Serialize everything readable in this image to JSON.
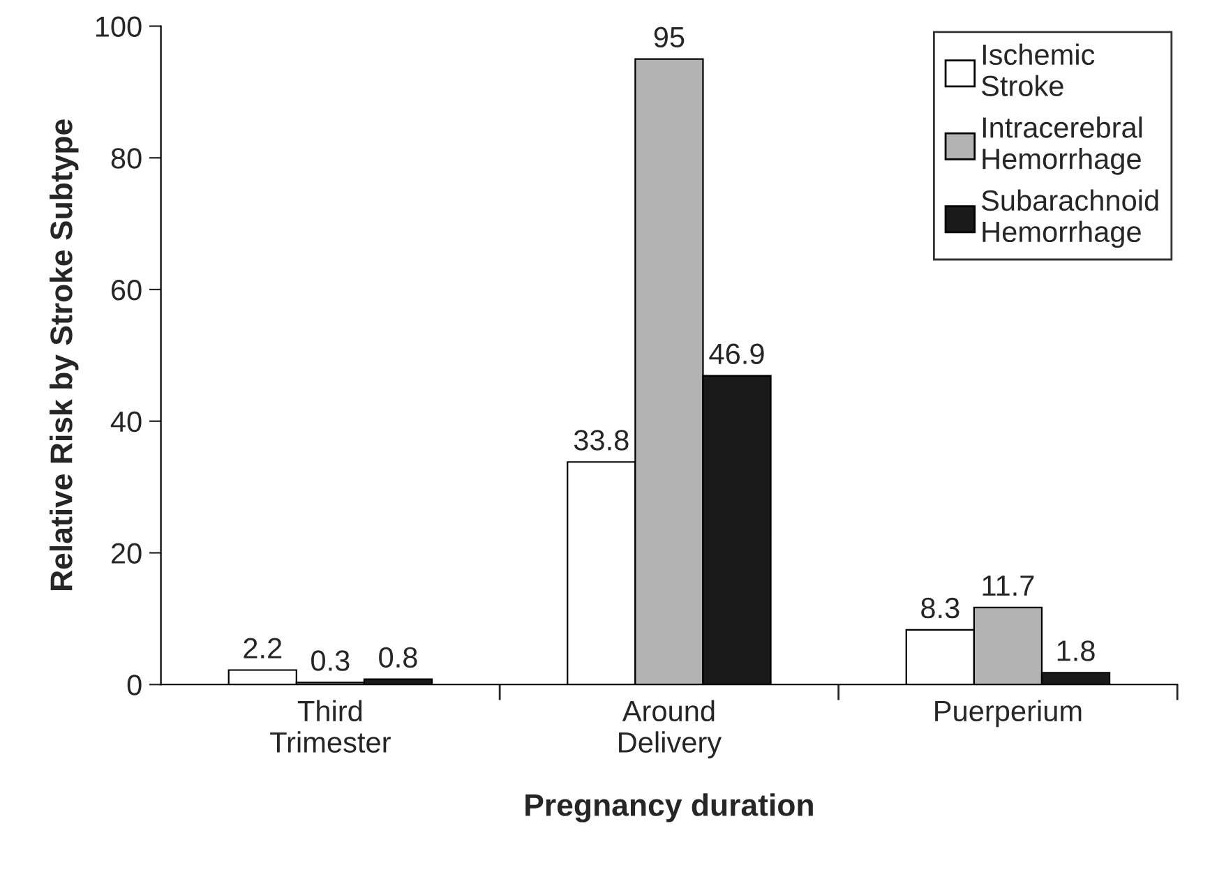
{
  "chart_data": {
    "type": "bar",
    "xlabel": "Pregnancy duration",
    "ylabel": "Relative Risk by Stroke Subtype",
    "categories": [
      "Third\nTrimester",
      "Around\nDelivery",
      "Puerperium"
    ],
    "series": [
      {
        "name": "Ischemic\nStroke",
        "color": "#ffffff",
        "values": [
          2.2,
          33.8,
          8.3
        ]
      },
      {
        "name": "Intracerebral\nHemorrhage",
        "color": "#b3b3b3",
        "values": [
          0.3,
          95,
          11.7
        ]
      },
      {
        "name": "Subarachnoid\nHemorrhage",
        "color": "#1a1a1a",
        "values": [
          0.8,
          46.9,
          1.8
        ]
      }
    ],
    "ylim": [
      0,
      100
    ],
    "yticks": [
      0,
      20,
      40,
      60,
      80,
      100
    ],
    "data_labels": true,
    "legend": "top right",
    "grid": false
  }
}
